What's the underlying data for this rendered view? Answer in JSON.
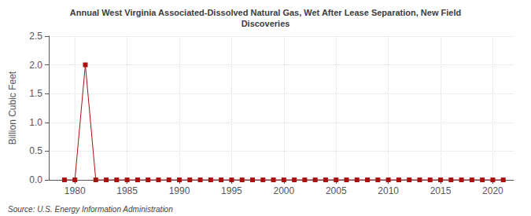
{
  "chart_data": {
    "type": "line",
    "title": "Annual West Virginia Associated-Dissolved Natural Gas, Wet After Lease Separation, New Field\nDiscoveries",
    "ylabel": "Billion Cubic Feet",
    "annotation": "Source: U.S. Energy Information Administration",
    "x": [
      1979,
      1980,
      1981,
      1982,
      1983,
      1984,
      1985,
      1986,
      1987,
      1988,
      1989,
      1990,
      1991,
      1992,
      1993,
      1994,
      1995,
      1996,
      1997,
      1998,
      1999,
      2000,
      2001,
      2002,
      2003,
      2004,
      2005,
      2006,
      2007,
      2008,
      2009,
      2010,
      2011,
      2012,
      2013,
      2014,
      2015,
      2016,
      2017,
      2018,
      2019,
      2020,
      2021
    ],
    "values": [
      0.0,
      0.0,
      2.001,
      0.0,
      0.0,
      0.0,
      0.0,
      0.0,
      0.0,
      0.0,
      0.0,
      0.0,
      0.0,
      0.0,
      0.0,
      0.0,
      0.0,
      0.0,
      0.0,
      0.0,
      0.0,
      0.0,
      0.0,
      0.0,
      0.0,
      0.0,
      0.0,
      0.0,
      0.0,
      0.0,
      0.0,
      0.0,
      0.0,
      0.0,
      0.0,
      0.0,
      0.0,
      0.0,
      0.0,
      0.0,
      0.0,
      0.0,
      0.0
    ],
    "color": "#aa1111",
    "marker": "square",
    "xlim": [
      1977.5,
      2022
    ],
    "xticks": [
      1980,
      1985,
      1990,
      1995,
      2000,
      2005,
      2010,
      2015,
      2020
    ],
    "ylim": [
      0,
      2.5
    ],
    "yticks": [
      {
        "value": 0.0,
        "label": "0.0"
      },
      0.5,
      {
        "value": 1.0,
        "label": "1.0"
      },
      1.5,
      {
        "value": 2.0,
        "label": "2.0"
      },
      2.5
    ],
    "grid": true
  }
}
